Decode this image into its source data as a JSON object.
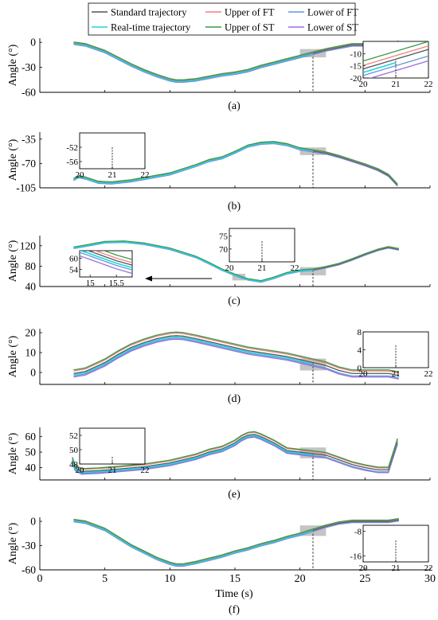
{
  "colors": {
    "standard": "#555555",
    "realtime": "#22d3e0",
    "upper_ft": "#f08080",
    "lower_ft": "#5b9bd5",
    "upper_st": "#3a9a4a",
    "lower_st": "#9b6fe0",
    "highlight": "#b0b0b0"
  },
  "legend": {
    "items": [
      {
        "key": "standard",
        "label": "Standard trajectory"
      },
      {
        "key": "upper_ft",
        "label": "Upper of FT"
      },
      {
        "key": "lower_ft",
        "label": "Lower of FT"
      },
      {
        "key": "realtime",
        "label": "Real-time trajectory"
      },
      {
        "key": "upper_st",
        "label": "Upper of ST"
      },
      {
        "key": "lower_st",
        "label": "Lower of ST"
      }
    ]
  },
  "xlabel": "Time (s)",
  "chart_data": [
    {
      "type": "line",
      "panel": "(a)",
      "ylabel": "Angle (°)",
      "xlim": [
        0,
        30
      ],
      "ylim": [
        -60,
        5
      ],
      "yticks": [
        0,
        -30,
        -60
      ],
      "x": [
        2.6,
        3.5,
        5,
        6,
        7,
        8,
        9,
        10,
        10.5,
        11,
        12,
        13,
        14,
        15,
        16,
        17,
        18,
        19,
        20,
        21,
        22,
        23,
        24,
        25,
        26,
        26.8,
        27,
        27.6
      ],
      "standard": [
        -1,
        -3,
        -11,
        -19,
        -27,
        -34,
        -40,
        -45,
        -46.5,
        -46.5,
        -45,
        -42,
        -39,
        -37,
        -34,
        -29,
        -25,
        -21,
        -17,
        -13,
        -9,
        -6,
        -3,
        -3,
        -3,
        -3,
        -2,
        0
      ],
      "realtime_end": 21,
      "offsets": {
        "upper": 1.5,
        "lower": -1.5
      },
      "zoom": {
        "xlim": [
          20,
          22
        ],
        "ylim": [
          -20,
          -5
        ],
        "xticks": [
          20,
          21,
          22
        ],
        "yticks": [
          -10,
          -15,
          -20
        ],
        "target_y": -13
      },
      "highlight": {
        "x": [
          20,
          22
        ],
        "y": [
          -18,
          -8
        ]
      },
      "annotation": "",
      "caption": "(a)"
    },
    {
      "type": "line",
      "panel": "(b)",
      "ylabel": "Angle (°)",
      "xlim": [
        0,
        30
      ],
      "ylim": [
        -105,
        -25
      ],
      "yticks": [
        -35,
        -70,
        -105
      ],
      "x": [
        2.6,
        3,
        3.5,
        4.5,
        5.5,
        7,
        8.5,
        10,
        11,
        12,
        13,
        14,
        15,
        16,
        17,
        18,
        19,
        20,
        21,
        22,
        23,
        24,
        25,
        26,
        26.8,
        27.5
      ],
      "standard": [
        -93,
        -89,
        -91,
        -97,
        -98,
        -95,
        -90,
        -85,
        -79,
        -73,
        -66,
        -62,
        -54,
        -45,
        -41,
        -40,
        -43,
        -49,
        -52,
        -55,
        -60,
        -66,
        -72,
        -79,
        -87,
        -101
      ],
      "realtime_end": 21,
      "offsets": {
        "upper": 1.5,
        "lower": -1.5
      },
      "zoom": {
        "xlim": [
          20,
          22
        ],
        "ylim": [
          -58,
          -48
        ],
        "xticks": [
          20,
          21,
          22
        ],
        "yticks": [
          -52,
          -56
        ],
        "target_y": -52
      },
      "highlight": {
        "x": [
          20,
          22
        ],
        "y": [
          -58,
          -47
        ]
      },
      "annotation": "",
      "caption": "(b)"
    },
    {
      "type": "line",
      "panel": "(c)",
      "ylabel": "Angle (°)",
      "xlim": [
        0,
        30
      ],
      "ylim": [
        40,
        140
      ],
      "yticks": [
        120,
        80,
        40
      ],
      "x": [
        2.6,
        3.5,
        5,
        6.5,
        8,
        10,
        12,
        13,
        14,
        15,
        15.5,
        16,
        17,
        18,
        19,
        20,
        21,
        22,
        23,
        24,
        25,
        26,
        26.8,
        27.6
      ],
      "standard": [
        116,
        120,
        127,
        128,
        124,
        114,
        98,
        86,
        73,
        63,
        58,
        54,
        50,
        57,
        66,
        71,
        73,
        78,
        84,
        93,
        103,
        112,
        117,
        113
      ],
      "realtime_end": 21,
      "offsets": {
        "upper": 1.5,
        "lower": -1.5
      },
      "zoom": {
        "xlim": [
          20,
          22
        ],
        "ylim": [
          65,
          78
        ],
        "xticks": [
          20,
          21,
          22
        ],
        "yticks": [
          75,
          70
        ],
        "target_y": 72
      },
      "zoom2": {
        "xlim": [
          14.8,
          15.8
        ],
        "ylim": [
          50,
          64
        ],
        "xticks": [
          15.0,
          15.5
        ],
        "yticks": [
          60,
          54
        ]
      },
      "highlight": {
        "x": [
          20,
          22
        ],
        "y": [
          62,
          78
        ]
      },
      "highlight2": {
        "x": [
          14.8,
          15.8
        ],
        "y": [
          52,
          65
        ]
      },
      "annotation": "",
      "caption": "(c)"
    },
    {
      "type": "line",
      "panel": "(d)",
      "ylabel": "Angle (°)",
      "xlim": [
        0,
        30
      ],
      "ylim": [
        -6,
        22
      ],
      "yticks": [
        20,
        10,
        0
      ],
      "x": [
        2.6,
        3.5,
        5,
        6,
        7,
        8,
        9,
        10,
        10.5,
        11,
        12,
        13,
        14,
        15,
        16,
        17,
        18,
        19,
        20,
        21,
        22,
        23,
        24,
        25,
        26,
        26.8,
        27.6
      ],
      "standard": [
        -0.5,
        0.5,
        5,
        9,
        12.5,
        15,
        17,
        18.3,
        18.5,
        18.3,
        17,
        15.5,
        14,
        12.5,
        11,
        10,
        9,
        8,
        6.5,
        5,
        3.5,
        1,
        -0.5,
        -0.5,
        -0.5,
        -0.5,
        -1.5
      ],
      "realtime_end": 21,
      "offsets": {
        "upper": 1.8,
        "lower": -1.8
      },
      "zoom": {
        "xlim": [
          20,
          22
        ],
        "ylim": [
          0,
          8
        ],
        "xticks": [
          20,
          21,
          22
        ],
        "yticks": [
          8,
          4,
          0
        ],
        "target_y": 5
      },
      "highlight": {
        "x": [
          20,
          22
        ],
        "y": [
          1,
          7
        ]
      },
      "annotation": "",
      "caption": "(d)"
    },
    {
      "type": "line",
      "panel": "(e)",
      "ylabel": "Angle (°)",
      "xlim": [
        0,
        30
      ],
      "ylim": [
        32,
        66
      ],
      "yticks": [
        60,
        50,
        40
      ],
      "x": [
        2.5,
        2.7,
        3.2,
        4.5,
        6,
        8,
        10,
        12,
        13,
        14,
        15,
        15.5,
        16,
        16.5,
        17,
        18,
        19,
        20,
        21,
        22,
        23,
        24,
        25,
        26,
        26.8,
        27.5
      ],
      "standard": [
        45,
        40,
        37.5,
        38,
        39,
        40.5,
        43,
        47,
        50,
        52,
        56,
        59,
        61,
        61.5,
        60,
        56,
        51,
        50,
        49,
        48,
        45,
        42,
        40,
        38.5,
        38.5,
        57
      ],
      "realtime_end": 21,
      "offsets": {
        "upper": 1.8,
        "lower": -1.8
      },
      "zoom": {
        "xlim": [
          20,
          22
        ],
        "ylim": [
          48,
          53
        ],
        "xticks": [
          20,
          21,
          22
        ],
        "yticks": [
          52,
          50,
          48
        ],
        "target_y": 50
      },
      "highlight": {
        "x": [
          20,
          22
        ],
        "y": [
          46,
          53
        ]
      },
      "annotation": "",
      "caption": "(e)"
    },
    {
      "type": "line",
      "panel": "(f)",
      "ylabel": "Angle (°)",
      "xlim": [
        0,
        30
      ],
      "ylim": [
        -60,
        5
      ],
      "yticks": [
        0,
        -30,
        -60
      ],
      "xticks": [
        0,
        5,
        10,
        15,
        20,
        25,
        30
      ],
      "x": [
        2.6,
        3.5,
        5,
        6,
        7,
        8,
        9,
        10,
        10.5,
        11,
        12,
        13,
        14,
        15,
        16,
        17,
        18,
        19,
        20,
        21,
        22,
        23,
        24,
        25,
        26,
        26.8,
        27.6
      ],
      "standard": [
        1,
        -1,
        -10,
        -20,
        -30,
        -38,
        -46,
        -52,
        -54,
        -54,
        -51,
        -47,
        -43,
        -38,
        -34,
        -29,
        -25,
        -20,
        -16,
        -11,
        -6,
        -2,
        0,
        0,
        0,
        0,
        2
      ],
      "realtime_end": 21,
      "offsets": {
        "upper": 1.5,
        "lower": -1.5
      },
      "zoom": {
        "xlim": [
          20,
          22
        ],
        "ylim": [
          -18,
          -6
        ],
        "xticks": [
          20,
          21,
          22
        ],
        "yticks": [
          -8,
          -16
        ],
        "target_y": -12
      },
      "highlight": {
        "x": [
          20,
          22
        ],
        "y": [
          -18,
          -5
        ]
      },
      "annotation": "",
      "caption": "(f)"
    }
  ]
}
